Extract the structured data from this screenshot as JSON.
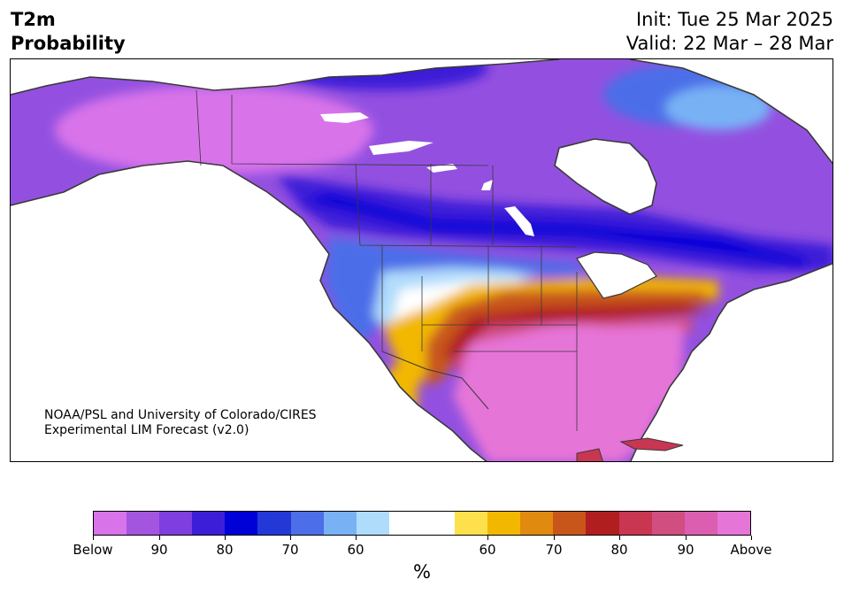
{
  "header": {
    "title_line1": "T2m",
    "title_line2": "Probability",
    "init": "Init: Tue 25 Mar 2025",
    "valid": "Valid: 22 Mar – 28 Mar"
  },
  "credit": {
    "line1": "NOAA/PSL and University of Colorado/CIRES",
    "line2": "Experimental LIM Forecast (v2.0)"
  },
  "colorbar": {
    "colors": [
      "#d873ea",
      "#a455e0",
      "#7e3ee0",
      "#3d1ed8",
      "#0000d8",
      "#2438d8",
      "#4c6ee8",
      "#78b2f5",
      "#b0dcfc",
      "#ffffff",
      "#ffffff",
      "#fde04c",
      "#f2b800",
      "#e08a10",
      "#c8561a",
      "#b01e20",
      "#c83652",
      "#d04e80",
      "#dc5eb0",
      "#e675d8"
    ],
    "tick_labels": [
      "Below",
      "90",
      "80",
      "70",
      "60",
      "60",
      "70",
      "80",
      "90",
      "Above"
    ],
    "unit": "%"
  },
  "legend_meaning": {
    "below_colors": "purple/blue shades = probability of below-normal temperature",
    "above_colors": "yellow/red/pink shades = probability of above-normal temperature"
  }
}
